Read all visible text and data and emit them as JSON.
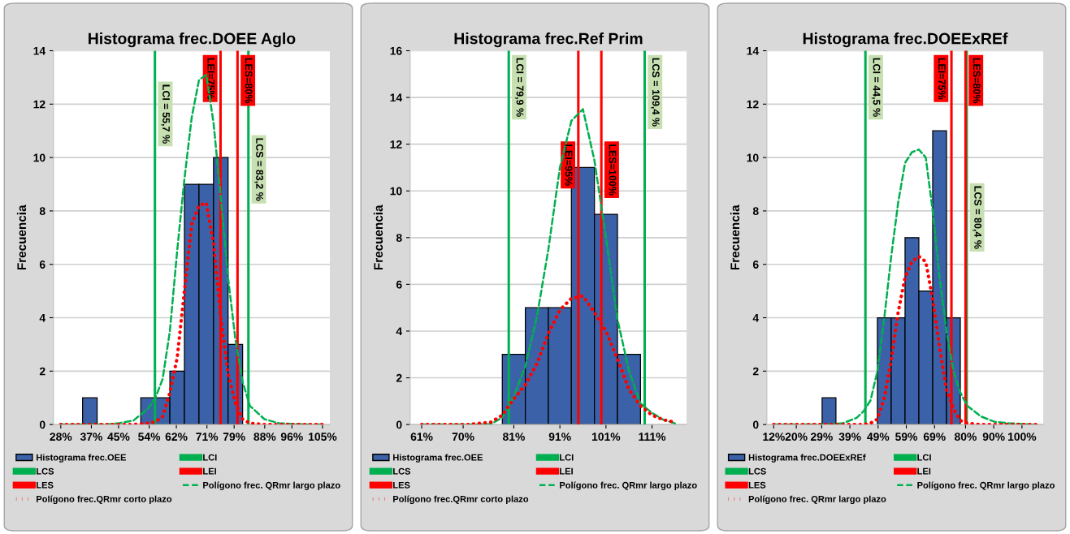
{
  "chart_data": [
    {
      "type": "histogram",
      "title": "Histograma frec.DOEE Aglo",
      "ylabel": "Frecuencia",
      "bins": [
        34.42,
        38.7,
        42.98,
        47.26,
        51.54,
        55.82,
        60.1,
        64.38,
        68.66,
        72.94,
        77.22,
        81.5
      ],
      "xlim": [
        25.86,
        107.18
      ],
      "xticks": [
        {
          "value": 28,
          "label": "28%"
        },
        {
          "value": 37,
          "label": "37%"
        },
        {
          "value": 45,
          "label": "45%"
        },
        {
          "value": 54,
          "label": "54%"
        },
        {
          "value": 62,
          "label": "62%"
        },
        {
          "value": 71,
          "label": "71%"
        },
        {
          "value": 79,
          "label": "79%"
        },
        {
          "value": 88,
          "label": "88%"
        },
        {
          "value": 96,
          "label": "96%"
        },
        {
          "value": 105,
          "label": "105%"
        }
      ],
      "ylim": [
        0,
        14
      ],
      "yticks": [
        0,
        2,
        4,
        6,
        8,
        10,
        12,
        14
      ],
      "grid": "y",
      "legend": "bottom",
      "series": [
        {
          "name": "Histograma frec.OEE",
          "color": "#3b62a8",
          "values": [
            1,
            0,
            0,
            0,
            1,
            1,
            2,
            9,
            9,
            10,
            3
          ]
        },
        {
          "name": "LCI",
          "type": "line",
          "color": "#00b050",
          "x": [
            55.7,
            55.7
          ],
          "values": [
            0,
            14
          ]
        },
        {
          "name": "LCS",
          "type": "line",
          "color": "#00b050",
          "x": [
            83.2,
            83.2
          ],
          "values": [
            0,
            14
          ]
        },
        {
          "name": "LEI",
          "type": "line",
          "color": "#ff0000",
          "x": [
            75,
            75
          ],
          "values": [
            0,
            14
          ]
        },
        {
          "name": "LES",
          "type": "line",
          "color": "#ff0000",
          "x": [
            80,
            80
          ],
          "values": [
            0,
            14
          ]
        },
        {
          "name": "Polígono frec. QRmr largo plazo",
          "type": "line",
          "line_style": "dashed",
          "color": "#00b050",
          "x": [
            28,
            32.28,
            36.56,
            40.84,
            45.12,
            49.4,
            53.68,
            55.82,
            57.96,
            60.1,
            62.24,
            64.38,
            66.52,
            68.66,
            70.8,
            72.94,
            75.08,
            77.22,
            79.36,
            81.5,
            83.64,
            87.92,
            92.2,
            96.48,
            100.76,
            105.04
          ],
          "values": [
            0,
            0,
            0,
            0,
            0.05,
            0.15,
            0.6,
            1.0,
            1.7,
            3.5,
            6.5,
            9.2,
            11.5,
            12.9,
            13.1,
            11.3,
            8.5,
            5.5,
            3.2,
            1.6,
            0.7,
            0.2,
            0.05,
            0.02,
            0,
            0
          ]
        },
        {
          "name": "Polígono frec.QRmr corto plazo",
          "type": "line",
          "line_style": "dotted",
          "color": "#ff0000",
          "x": [
            28,
            32.28,
            36.56,
            40.84,
            45.12,
            49.4,
            53.68,
            55.82,
            57.96,
            60.1,
            62.24,
            64.38,
            66.52,
            68.66,
            70.8,
            72.94,
            75.08,
            77.22,
            79.36,
            81.5,
            83.64,
            87.92,
            92.2,
            96.48,
            100.76,
            105.04
          ],
          "values": [
            0,
            0,
            0,
            0,
            0,
            0,
            0.05,
            0.1,
            0.3,
            1.2,
            2.5,
            5,
            7.5,
            8.2,
            8.3,
            6.8,
            4,
            1.9,
            0.8,
            0.2,
            0.05,
            0,
            0,
            0,
            0,
            0
          ]
        }
      ],
      "annotations": [
        {
          "text": "LCI = 55,7 %",
          "x": 55.7,
          "y": 13
        },
        {
          "text": "LEI=75%",
          "x": 75,
          "y": 14
        },
        {
          "text": "LES=80%",
          "x": 80,
          "y": 14
        },
        {
          "text": "LCS = 83,2 %",
          "x": 83.2,
          "y": 11
        }
      ]
    },
    {
      "type": "histogram",
      "title": "Histograma frec.Ref Prim",
      "ylabel": "Frecuencia",
      "bins": [
        78.5,
        83.5,
        88.5,
        93.5,
        98.5,
        103.5,
        108.5
      ],
      "xlim": [
        58.5,
        118.5
      ],
      "xticks": [
        {
          "value": 61,
          "label": "61%"
        },
        {
          "value": 70,
          "label": "70%"
        },
        {
          "value": 81,
          "label": "81%"
        },
        {
          "value": 91,
          "label": "91%"
        },
        {
          "value": 101,
          "label": "101%"
        },
        {
          "value": 111,
          "label": "111%"
        }
      ],
      "ylim": [
        0,
        16
      ],
      "yticks": [
        0,
        2,
        4,
        6,
        8,
        10,
        12,
        14,
        16
      ],
      "grid": "y",
      "legend": "bottom",
      "series": [
        {
          "name": "Histograma frec.OEE",
          "color": "#3b62a8",
          "values": [
            3,
            5,
            5,
            11,
            9,
            3
          ]
        },
        {
          "name": "LCI",
          "type": "line",
          "color": "#00b050",
          "x": [
            79.9,
            79.9
          ],
          "values": [
            0,
            16
          ]
        },
        {
          "name": "LCS",
          "type": "line",
          "color": "#00b050",
          "x": [
            109.4,
            109.4
          ],
          "values": [
            0,
            16
          ]
        },
        {
          "name": "LEI",
          "type": "line",
          "color": "#ff0000",
          "x": [
            95,
            95
          ],
          "values": [
            0,
            16
          ]
        },
        {
          "name": "LES",
          "type": "line",
          "color": "#ff0000",
          "x": [
            100,
            100
          ],
          "values": [
            0,
            16
          ]
        },
        {
          "name": "Polígono frec. QRmr largo plazo",
          "type": "line",
          "line_style": "dashed",
          "color": "#00b050",
          "x": [
            61,
            66,
            71,
            76,
            78.5,
            81,
            83.5,
            86,
            88.5,
            91,
            93.5,
            96,
            98.5,
            101,
            103.5,
            106,
            108.5,
            111,
            113.5,
            116
          ],
          "values": [
            0,
            0,
            0,
            0.02,
            0.3,
            1.2,
            2.5,
            4.6,
            7.5,
            11,
            13,
            13.5,
            11.3,
            8,
            4.5,
            2.3,
            0.9,
            0.5,
            0.2,
            0.05
          ]
        },
        {
          "name": "Polígono frec.QRmr corto plazo",
          "type": "line",
          "line_style": "dotted",
          "color": "#ff0000",
          "x": [
            61,
            66,
            71,
            76,
            78.5,
            81,
            83.5,
            86,
            88.5,
            91,
            93.5,
            96,
            98.5,
            101,
            103.5,
            106,
            108.5,
            111,
            113.5,
            116
          ],
          "values": [
            0,
            0,
            0,
            0.1,
            0.4,
            1.1,
            1.7,
            2.6,
            3.9,
            4.9,
            5.4,
            5.5,
            4.8,
            4.0,
            2.8,
            1.5,
            0.8,
            0.4,
            0.2,
            0.1
          ]
        }
      ],
      "annotations": [
        {
          "text": "LCI = 79,9 %",
          "x": 79.9,
          "y": 16
        },
        {
          "text": "LEI=95%",
          "x": 95,
          "y": 12.3
        },
        {
          "text": "LES=100%",
          "x": 100,
          "y": 12.3
        },
        {
          "text": "LCS = 109,4 %",
          "x": 109.4,
          "y": 16
        }
      ]
    },
    {
      "type": "histogram",
      "title": "Histograma frec.DOEExREf",
      "ylabel": "Frecuencia",
      "bins": [
        29.15,
        34.05,
        38.95,
        43.85,
        48.75,
        53.65,
        58.55,
        63.45,
        68.35,
        73.25,
        78.15
      ],
      "xlim": [
        9.55,
        107.55
      ],
      "xticks": [
        {
          "value": 12,
          "label": "12%"
        },
        {
          "value": 20,
          "label": "20%"
        },
        {
          "value": 29,
          "label": "29%"
        },
        {
          "value": 39,
          "label": "39%"
        },
        {
          "value": 49,
          "label": "49%"
        },
        {
          "value": 59,
          "label": "59%"
        },
        {
          "value": 69,
          "label": "69%"
        },
        {
          "value": 80,
          "label": "80%"
        },
        {
          "value": 90,
          "label": "90%"
        },
        {
          "value": 100,
          "label": "100%"
        }
      ],
      "ylim": [
        0,
        14
      ],
      "yticks": [
        0,
        2,
        4,
        6,
        8,
        10,
        12,
        14
      ],
      "grid": "y",
      "legend": "bottom",
      "series": [
        {
          "name": "Histograma frec.DOEExREf",
          "color": "#3b62a8",
          "values": [
            1,
            0,
            0,
            0,
            4,
            4,
            7,
            5,
            11,
            4
          ]
        },
        {
          "name": "LCI",
          "type": "line",
          "color": "#00b050",
          "x": [
            44.5,
            44.5
          ],
          "values": [
            0,
            14
          ]
        },
        {
          "name": "LCS",
          "type": "line",
          "color": "#00b050",
          "x": [
            80.4,
            80.4
          ],
          "values": [
            0,
            14
          ]
        },
        {
          "name": "LEI",
          "type": "line",
          "color": "#ff0000",
          "x": [
            75,
            75
          ],
          "values": [
            0,
            14
          ]
        },
        {
          "name": "LES",
          "type": "line",
          "color": "#ff0000",
          "x": [
            80,
            80
          ],
          "values": [
            0,
            14
          ]
        },
        {
          "name": "Polígono frec. QRmr largo plazo",
          "type": "line",
          "line_style": "dashed",
          "color": "#00b050",
          "x": [
            12,
            16.9,
            21.8,
            26.7,
            31.6,
            36.5,
            41.4,
            43.85,
            46.3,
            48.75,
            51.2,
            53.65,
            56.1,
            58.55,
            61,
            63.45,
            65.9,
            68.35,
            70.8,
            73.25,
            75.7,
            78.15,
            80.6,
            85.5,
            90.4,
            95.3,
            100.2,
            105.1
          ],
          "values": [
            0,
            0,
            0,
            0,
            0,
            0.05,
            0.25,
            0.5,
            0.9,
            2,
            4,
            6.3,
            8.3,
            9.8,
            10.2,
            10.3,
            10,
            8,
            5.5,
            3.5,
            2,
            1.2,
            0.7,
            0.3,
            0.1,
            0.05,
            0.02,
            0
          ]
        },
        {
          "name": "Polígono frec. QRmr largo plazo",
          "type": "line",
          "line_style": "dotted",
          "color": "#ff0000",
          "x": [
            12,
            16.9,
            21.8,
            26.7,
            31.6,
            36.5,
            41.4,
            43.85,
            46.3,
            48.75,
            51.2,
            53.65,
            56.1,
            58.55,
            61,
            63.45,
            65.9,
            68.35,
            70.8,
            73.25,
            75.7,
            78.15,
            80.6,
            85.5,
            90.4,
            95.3,
            100.2,
            105.1
          ],
          "values": [
            0,
            0,
            0,
            0,
            0,
            0,
            0,
            0,
            0.05,
            0.2,
            1,
            2.4,
            4.2,
            5.5,
            6.1,
            6.3,
            6.1,
            4.7,
            2.9,
            1.3,
            0.6,
            0.15,
            0.05,
            0,
            0,
            0,
            0,
            0
          ]
        }
      ],
      "annotations": [
        {
          "text": "LCI = 44,5 %",
          "x": 44.5,
          "y": 14
        },
        {
          "text": "LEI=75%",
          "x": 75,
          "y": 14
        },
        {
          "text": "LES=80%",
          "x": 80,
          "y": 14
        },
        {
          "text": "LCS = 80,4 %",
          "x": 80.4,
          "y": 9.2
        }
      ]
    }
  ]
}
